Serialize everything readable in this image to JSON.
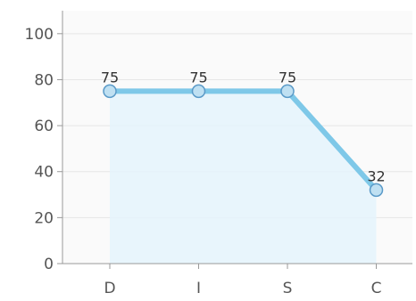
{
  "chart_data": {
    "type": "area",
    "title": "",
    "xlabel": "",
    "ylabel": "",
    "categories": [
      "D",
      "I",
      "S",
      "C"
    ],
    "series": [
      {
        "values": [
          75,
          75,
          75,
          32
        ]
      }
    ],
    "ylim": [
      0,
      110
    ],
    "yticks": [
      0,
      20,
      40,
      60,
      80,
      100
    ],
    "grid": true,
    "legend": "none",
    "colors": {
      "line": "#7ec8e8",
      "fill": "#e4f3fb",
      "marker_fill": "#bfe0f2",
      "marker_stroke": "#5a9ac8",
      "plot_bg": "#fafafa",
      "grid": "#e6e6e6",
      "axis": "#999999"
    }
  }
}
